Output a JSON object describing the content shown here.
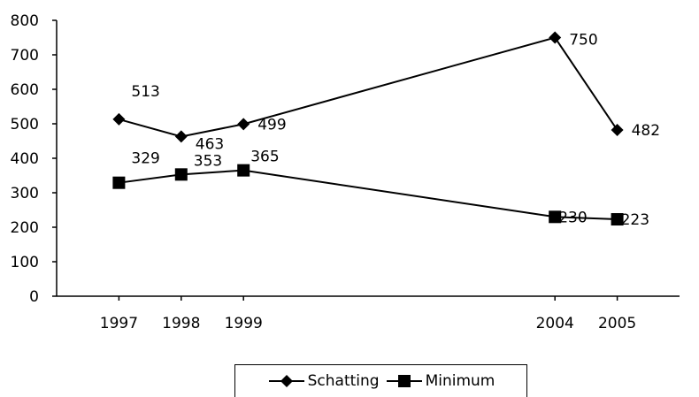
{
  "chart_data": {
    "type": "line",
    "title": "",
    "xlabel": "",
    "ylabel": "",
    "ylim": [
      0,
      800
    ],
    "yticks": [
      0,
      100,
      200,
      300,
      400,
      500,
      600,
      700,
      800
    ],
    "categories": [
      "1997",
      "1998",
      "1999",
      "2004",
      "2005"
    ],
    "x": [
      1997,
      1998,
      1999,
      2004,
      2005
    ],
    "grid": false,
    "legend_position": "bottom",
    "series": [
      {
        "name": "Schatting",
        "marker": "diamond",
        "color": "#000000",
        "values": [
          513,
          463,
          499,
          750,
          482
        ]
      },
      {
        "name": "Minimum",
        "marker": "square",
        "color": "#000000",
        "values": [
          329,
          353,
          365,
          230,
          223
        ]
      }
    ]
  }
}
